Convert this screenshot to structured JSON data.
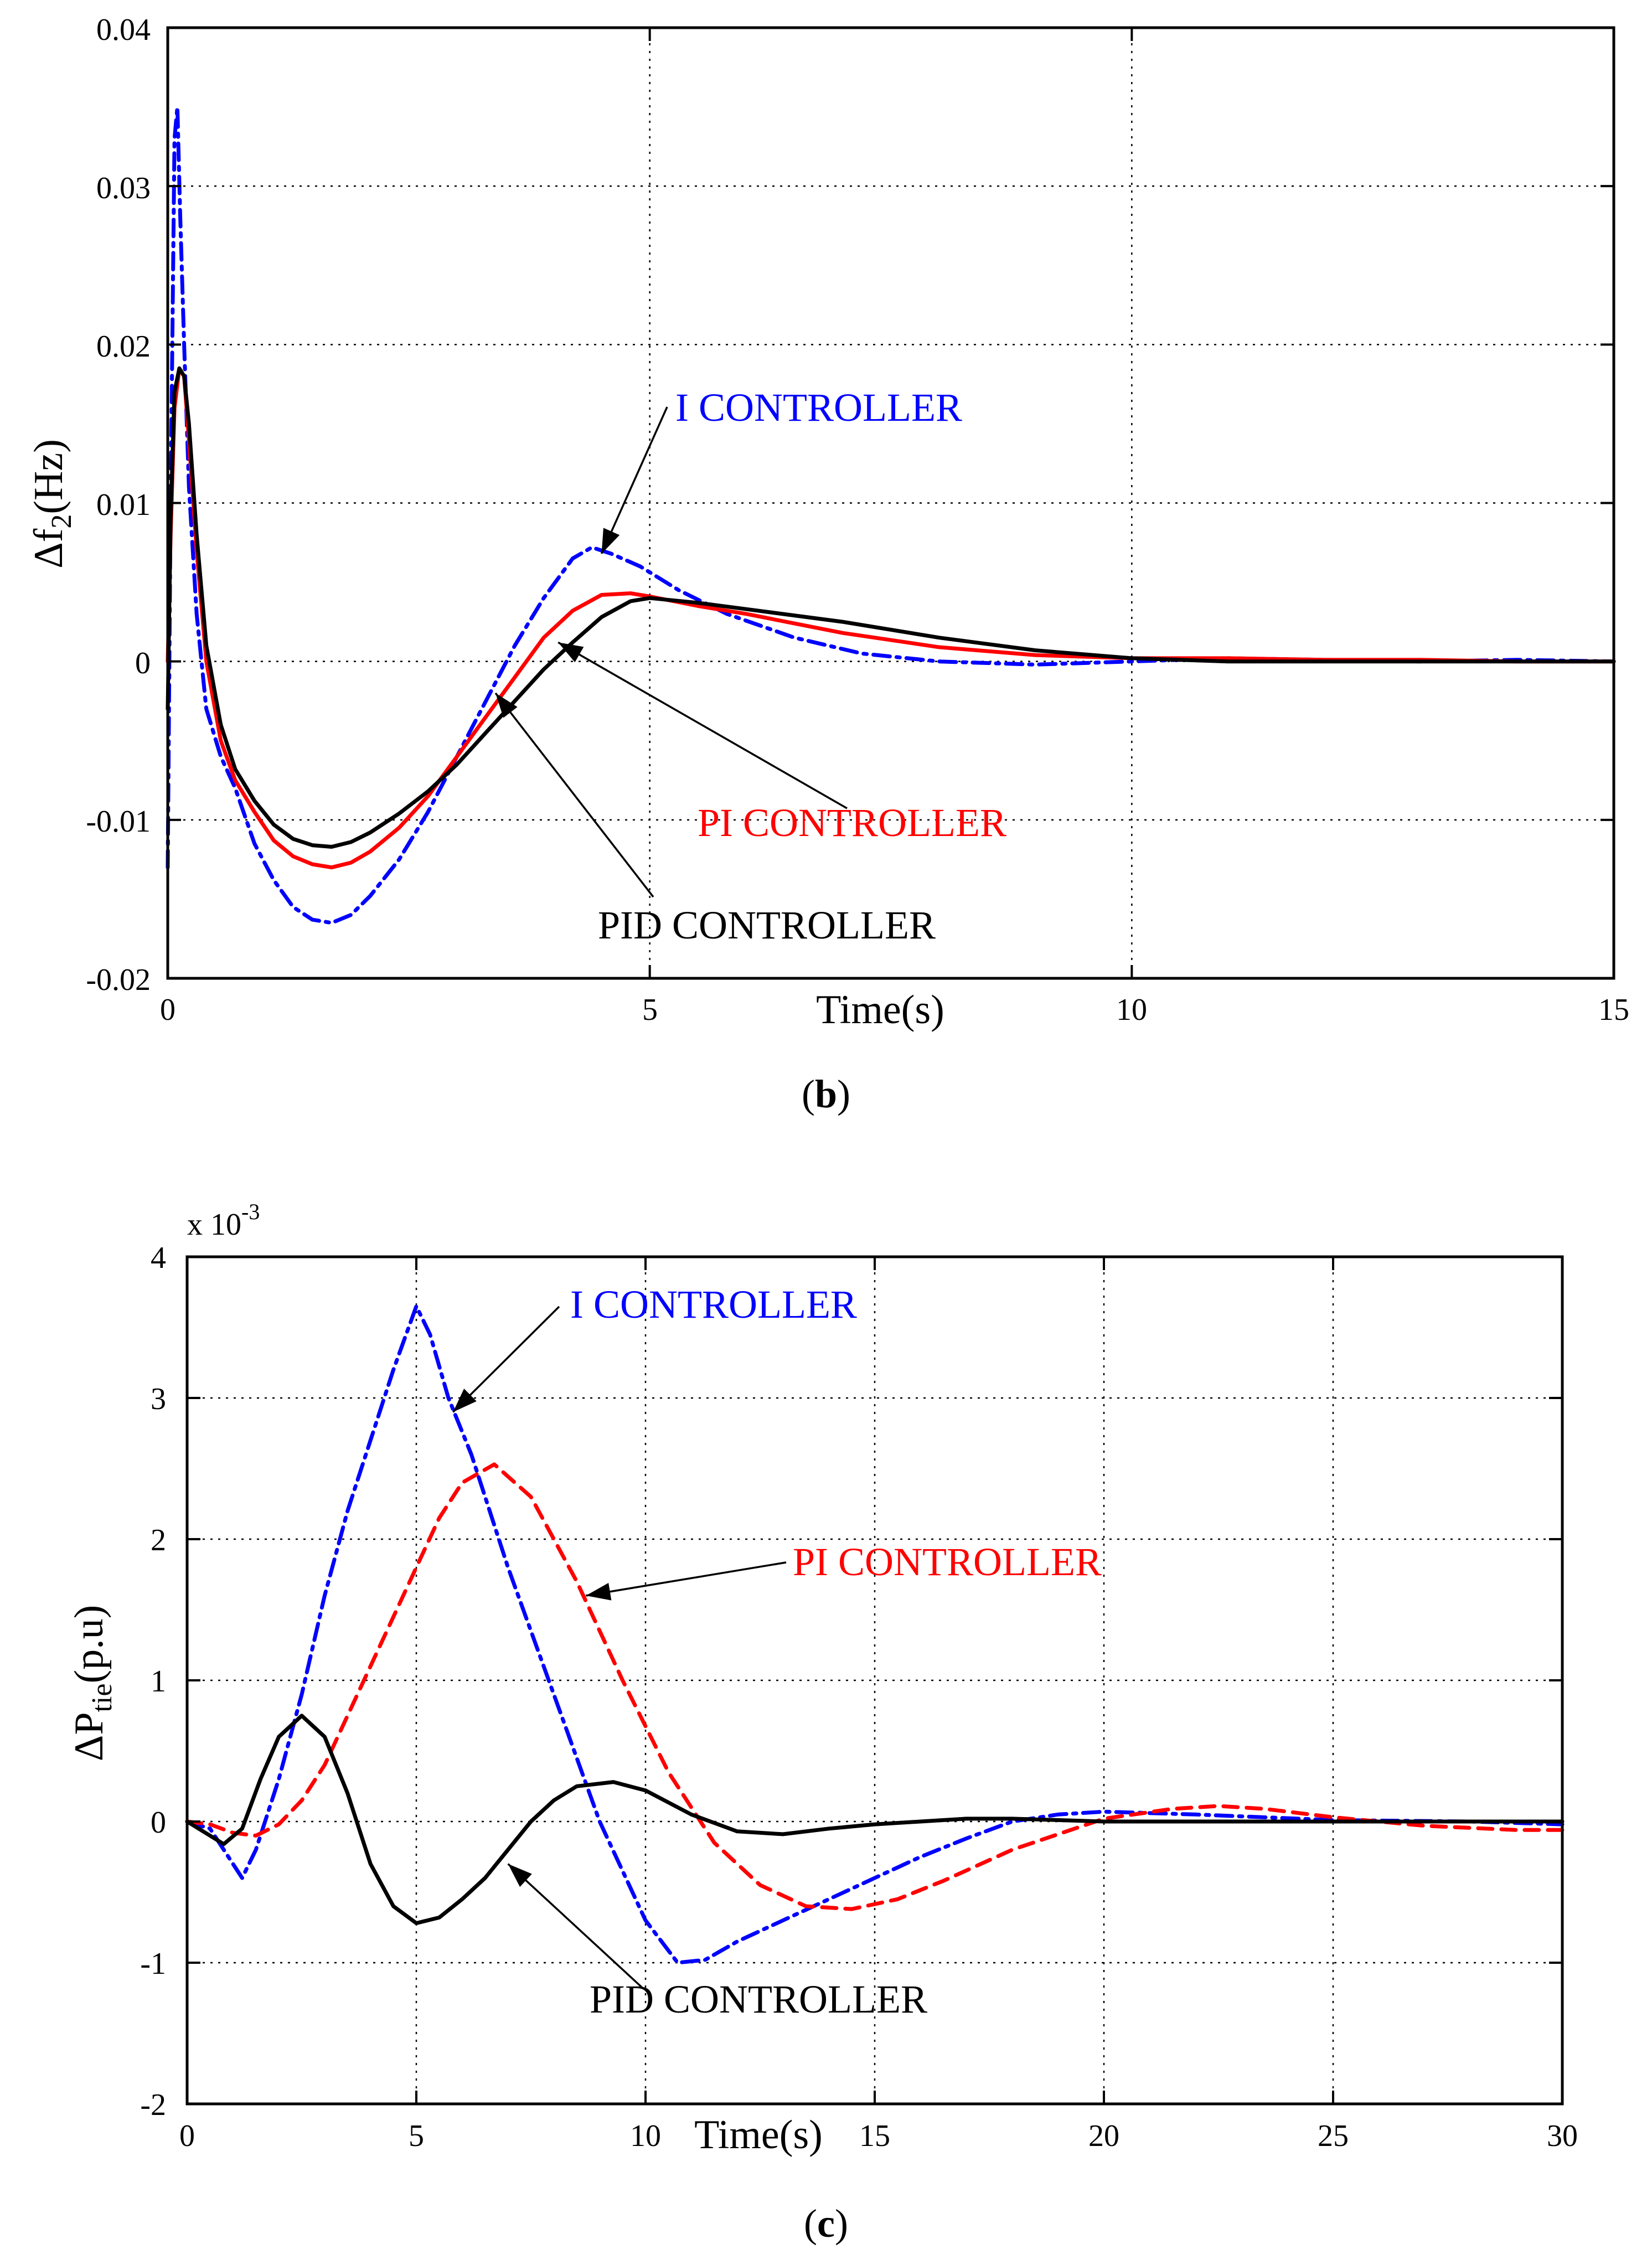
{
  "colors": {
    "axis": "#000000",
    "grid": "#000000",
    "series_I": "#0000ff",
    "series_PI": "#ff0000",
    "series_PID": "#000000",
    "background": "#ffffff"
  },
  "chart_data": [
    {
      "id": "b",
      "type": "line",
      "caption": "(b)",
      "caption_letter": "b",
      "ylabel_main": "Δf",
      "ylabel_sub": "2",
      "ylabel_unit": "(Hz)",
      "xlabel": "Time(s)",
      "xlim": [
        0,
        15
      ],
      "ylim": [
        -0.02,
        0.04
      ],
      "xticks": [
        0,
        5,
        10,
        15
      ],
      "xtick_labels": [
        "0",
        "5",
        "10",
        "15"
      ],
      "yticks": [
        -0.02,
        -0.01,
        0,
        0.01,
        0.02,
        0.03,
        0.04
      ],
      "ytick_labels": [
        "-0.02",
        "-0.01",
        "0",
        "0.01",
        "0.02",
        "0.03",
        "0.04"
      ],
      "grid": true,
      "series": [
        {
          "name": "I CONTROLLER",
          "color": "#0000ff",
          "style": "dashdot",
          "x": [
            0,
            0.03,
            0.07,
            0.1,
            0.13,
            0.17,
            0.22,
            0.3,
            0.4,
            0.55,
            0.7,
            0.9,
            1.1,
            1.3,
            1.5,
            1.7,
            1.9,
            2.1,
            2.4,
            2.7,
            3.0,
            3.3,
            3.6,
            3.9,
            4.2,
            4.4,
            4.6,
            4.9,
            5.3,
            5.8,
            6.5,
            7.2,
            8,
            9,
            10,
            11,
            12,
            13,
            14,
            15
          ],
          "y": [
            -0.013,
            0.01,
            0.033,
            0.035,
            0.028,
            0.02,
            0.011,
            0.003,
            -0.003,
            -0.006,
            -0.008,
            -0.0115,
            -0.0138,
            -0.0155,
            -0.0163,
            -0.0165,
            -0.016,
            -0.0148,
            -0.0125,
            -0.0095,
            -0.006,
            -0.0025,
            0.001,
            0.004,
            0.0065,
            0.0072,
            0.0068,
            0.006,
            0.0045,
            0.003,
            0.0015,
            0.0005,
            0.0,
            -0.0002,
            0.0,
            0.0002,
            0.0001,
            0.0,
            0.0001,
            0.0
          ]
        },
        {
          "name": "PI CONTROLLER",
          "color": "#ff0000",
          "style": "solid",
          "x": [
            0,
            0.03,
            0.07,
            0.12,
            0.17,
            0.22,
            0.3,
            0.4,
            0.55,
            0.7,
            0.9,
            1.1,
            1.3,
            1.5,
            1.7,
            1.9,
            2.1,
            2.4,
            2.7,
            3.0,
            3.3,
            3.6,
            3.9,
            4.2,
            4.5,
            4.8,
            5.0,
            5.5,
            6,
            7,
            8,
            9,
            10,
            11,
            12,
            13,
            14,
            15
          ],
          "y": [
            0.0,
            0.008,
            0.016,
            0.0185,
            0.018,
            0.014,
            0.007,
            0.0,
            -0.005,
            -0.0075,
            -0.0095,
            -0.0113,
            -0.0123,
            -0.0128,
            -0.013,
            -0.0127,
            -0.012,
            -0.0105,
            -0.0085,
            -0.006,
            -0.0035,
            -0.001,
            0.0015,
            0.0032,
            0.0042,
            0.0043,
            0.0041,
            0.0035,
            0.003,
            0.0018,
            0.0009,
            0.0004,
            0.0002,
            0.0002,
            0.0001,
            0.0001,
            0.0,
            0.0
          ]
        },
        {
          "name": "PID CONTROLLER",
          "color": "#000000",
          "style": "solid",
          "x": [
            0,
            0.03,
            0.07,
            0.12,
            0.17,
            0.22,
            0.3,
            0.4,
            0.55,
            0.7,
            0.9,
            1.1,
            1.3,
            1.5,
            1.7,
            1.9,
            2.1,
            2.4,
            2.7,
            3.0,
            3.3,
            3.6,
            3.9,
            4.2,
            4.5,
            4.8,
            5.0,
            5.5,
            6,
            7,
            8,
            9,
            10,
            11,
            12,
            13,
            14,
            15
          ],
          "y": [
            -0.003,
            0.009,
            0.017,
            0.0185,
            0.018,
            0.015,
            0.008,
            0.001,
            -0.004,
            -0.0068,
            -0.0088,
            -0.0103,
            -0.0112,
            -0.0116,
            -0.0117,
            -0.0114,
            -0.0108,
            -0.0096,
            -0.0082,
            -0.0065,
            -0.0045,
            -0.0025,
            -0.0005,
            0.0012,
            0.0028,
            0.0038,
            0.004,
            0.0037,
            0.0033,
            0.0025,
            0.0015,
            0.0007,
            0.0002,
            0.0,
            0.0,
            0.0,
            0.0,
            0.0
          ]
        }
      ],
      "annotations": [
        {
          "text": "I CONTROLLER",
          "color": "#0000ff",
          "arrow_to": [
            4.5,
            0.0068
          ]
        },
        {
          "text": "PI CONTROLLER",
          "color": "#ff0000",
          "arrow_to": [
            4.05,
            0.0012
          ]
        },
        {
          "text": "PID CONTROLLER",
          "color": "#000000",
          "arrow_to": [
            3.4,
            -0.002
          ]
        }
      ]
    },
    {
      "id": "c",
      "type": "line",
      "caption": "(c)",
      "caption_letter": "c",
      "ylabel_main": "ΔP",
      "ylabel_sub": "tie",
      "ylabel_unit": "(p.u)",
      "xlabel": "Time(s)",
      "y_multiplier_base": "x 10",
      "y_multiplier_exp": "-3",
      "xlim": [
        0,
        30
      ],
      "ylim": [
        -2,
        4
      ],
      "xticks": [
        0,
        5,
        10,
        15,
        20,
        25,
        30
      ],
      "xtick_labels": [
        "0",
        "5",
        "10",
        "15",
        "20",
        "25",
        "30"
      ],
      "yticks": [
        -2,
        -1,
        0,
        1,
        2,
        3,
        4
      ],
      "ytick_labels": [
        "-2",
        "-1",
        "0",
        "1",
        "2",
        "3",
        "4"
      ],
      "grid": true,
      "series": [
        {
          "name": "I CONTROLLER",
          "color": "#0000ff",
          "style": "dashdot",
          "x": [
            0,
            0.5,
            1.0,
            1.2,
            1.5,
            2,
            2.5,
            3,
            3.5,
            4,
            4.5,
            5,
            5.3,
            5.7,
            6.2,
            7,
            8,
            9,
            10,
            10.7,
            11.3,
            12,
            13,
            14,
            15,
            16,
            17,
            18,
            19,
            20,
            22,
            25,
            28,
            30
          ],
          "y": [
            0,
            -0.05,
            -0.3,
            -0.4,
            -0.2,
            0.3,
            0.9,
            1.6,
            2.2,
            2.7,
            3.2,
            3.65,
            3.45,
            3.0,
            2.6,
            1.8,
            0.9,
            0.0,
            -0.7,
            -1.0,
            -0.98,
            -0.85,
            -0.7,
            -0.55,
            -0.4,
            -0.25,
            -0.12,
            0.0,
            0.05,
            0.07,
            0.05,
            0.01,
            0.0,
            -0.02
          ]
        },
        {
          "name": "PI CONTROLLER",
          "color": "#ff0000",
          "style": "dashed",
          "x": [
            0,
            0.5,
            1.0,
            1.5,
            2,
            2.5,
            3,
            3.5,
            4,
            4.5,
            5,
            5.5,
            6,
            6.7,
            7.5,
            8.5,
            9.5,
            10.5,
            11.5,
            12.5,
            13.5,
            14.5,
            15.5,
            16.5,
            18,
            20,
            21.5,
            22.5,
            23.5,
            25,
            27,
            29,
            30
          ],
          "y": [
            0,
            -0.02,
            -0.08,
            -0.1,
            -0.02,
            0.15,
            0.4,
            0.75,
            1.1,
            1.45,
            1.8,
            2.15,
            2.4,
            2.53,
            2.3,
            1.7,
            1.0,
            0.35,
            -0.15,
            -0.45,
            -0.6,
            -0.62,
            -0.55,
            -0.42,
            -0.2,
            0.02,
            0.09,
            0.11,
            0.09,
            0.03,
            -0.03,
            -0.06,
            -0.06
          ]
        },
        {
          "name": "PID CONTROLLER",
          "color": "#000000",
          "style": "solid",
          "x": [
            0,
            0.4,
            0.8,
            1.2,
            1.6,
            2.0,
            2.5,
            3.0,
            3.5,
            4.0,
            4.5,
            5.0,
            5.5,
            6.0,
            6.5,
            7.0,
            7.5,
            8.0,
            8.5,
            9.3,
            10.0,
            11.0,
            12.0,
            13.0,
            14.0,
            15.0,
            16.0,
            17.0,
            18.0,
            20.0,
            22.0,
            25.0,
            30.0
          ],
          "y": [
            0,
            -0.08,
            -0.16,
            -0.05,
            0.3,
            0.6,
            0.75,
            0.6,
            0.2,
            -0.3,
            -0.6,
            -0.72,
            -0.68,
            -0.55,
            -0.4,
            -0.2,
            0.0,
            0.15,
            0.25,
            0.28,
            0.22,
            0.05,
            -0.07,
            -0.09,
            -0.05,
            -0.02,
            0.0,
            0.02,
            0.02,
            0.0,
            0.0,
            0.0,
            0.0
          ]
        }
      ],
      "annotations": [
        {
          "text": "I CONTROLLER",
          "color": "#0000ff",
          "arrow_to": [
            5.8,
            2.9
          ]
        },
        {
          "text": "PI CONTROLLER",
          "color": "#ff0000",
          "arrow_to": [
            8.7,
            1.6
          ]
        },
        {
          "text": "PID CONTROLLER",
          "color": "#000000",
          "arrow_to": [
            7.0,
            -0.3
          ]
        }
      ]
    }
  ]
}
